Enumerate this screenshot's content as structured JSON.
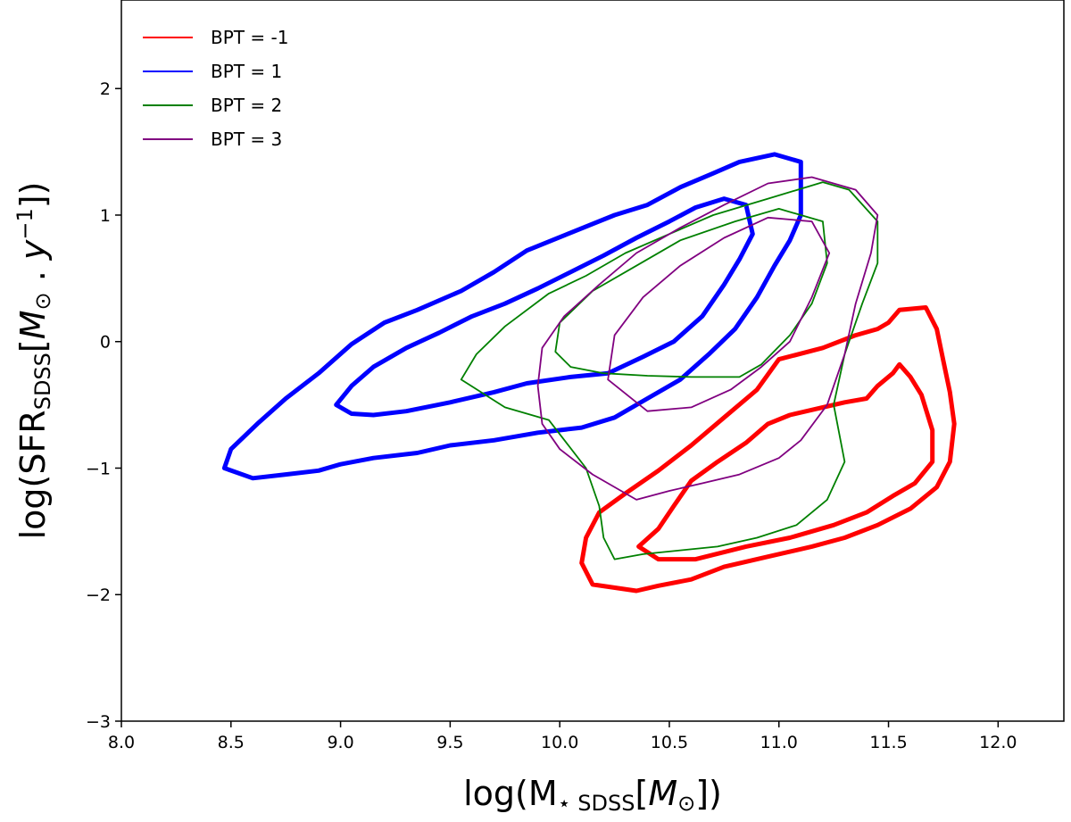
{
  "chart_data": {
    "type": "line",
    "xlabel": "log(M_{⋆ SDSS}[M_⊙])",
    "ylabel": "log(SFR_{SDSS}[M_⊙ . y^{-1}])",
    "xlim": [
      8.0,
      12.3
    ],
    "ylim": [
      -3,
      2.7
    ],
    "xticks": [
      "8.0",
      "8.5",
      "9.0",
      "9.5",
      "10.0",
      "10.5",
      "11.0",
      "11.5",
      "12.0"
    ],
    "yticks": [
      "−3",
      "−2",
      "−1",
      "0",
      "1",
      "2"
    ],
    "legend_position": "top-left",
    "grid": false,
    "series": [
      {
        "name": "BPT = -1",
        "color": "#ff0000",
        "contours": [
          [
            [
              10.1,
              -1.75
            ],
            [
              10.12,
              -1.55
            ],
            [
              10.18,
              -1.35
            ],
            [
              10.3,
              -1.2
            ],
            [
              10.45,
              -1.02
            ],
            [
              10.6,
              -0.82
            ],
            [
              10.75,
              -0.6
            ],
            [
              10.9,
              -0.38
            ],
            [
              11.0,
              -0.14
            ],
            [
              11.2,
              -0.05
            ],
            [
              11.35,
              0.05
            ],
            [
              11.45,
              0.1
            ],
            [
              11.5,
              0.15
            ],
            [
              11.55,
              0.25
            ],
            [
              11.67,
              0.27
            ],
            [
              11.72,
              0.1
            ],
            [
              11.75,
              -0.15
            ],
            [
              11.78,
              -0.4
            ],
            [
              11.8,
              -0.65
            ],
            [
              11.78,
              -0.95
            ],
            [
              11.72,
              -1.15
            ],
            [
              11.6,
              -1.32
            ],
            [
              11.45,
              -1.45
            ],
            [
              11.3,
              -1.55
            ],
            [
              11.15,
              -1.62
            ],
            [
              10.95,
              -1.7
            ],
            [
              10.75,
              -1.78
            ],
            [
              10.6,
              -1.88
            ],
            [
              10.45,
              -1.93
            ],
            [
              10.35,
              -1.97
            ],
            [
              10.15,
              -1.92
            ],
            [
              10.1,
              -1.75
            ]
          ],
          [
            [
              10.36,
              -1.62
            ],
            [
              10.45,
              -1.48
            ],
            [
              10.52,
              -1.3
            ],
            [
              10.6,
              -1.1
            ],
            [
              10.72,
              -0.95
            ],
            [
              10.85,
              -0.8
            ],
            [
              10.95,
              -0.65
            ],
            [
              11.05,
              -0.58
            ],
            [
              11.2,
              -0.52
            ],
            [
              11.3,
              -0.48
            ],
            [
              11.4,
              -0.45
            ],
            [
              11.45,
              -0.35
            ],
            [
              11.52,
              -0.25
            ],
            [
              11.55,
              -0.18
            ],
            [
              11.6,
              -0.28
            ],
            [
              11.65,
              -0.42
            ],
            [
              11.7,
              -0.7
            ],
            [
              11.7,
              -0.95
            ],
            [
              11.62,
              -1.12
            ],
            [
              11.52,
              -1.22
            ],
            [
              11.4,
              -1.35
            ],
            [
              11.25,
              -1.45
            ],
            [
              11.05,
              -1.55
            ],
            [
              10.85,
              -1.62
            ],
            [
              10.62,
              -1.72
            ],
            [
              10.45,
              -1.72
            ],
            [
              10.36,
              -1.62
            ]
          ]
        ]
      },
      {
        "name": "BPT = 1",
        "color": "#0000ff",
        "contours": [
          [
            [
              8.47,
              -1.0
            ],
            [
              8.5,
              -0.85
            ],
            [
              8.62,
              -0.65
            ],
            [
              8.75,
              -0.45
            ],
            [
              8.9,
              -0.25
            ],
            [
              9.05,
              -0.02
            ],
            [
              9.2,
              0.15
            ],
            [
              9.35,
              0.25
            ],
            [
              9.55,
              0.4
            ],
            [
              9.7,
              0.55
            ],
            [
              9.85,
              0.72
            ],
            [
              10.05,
              0.86
            ],
            [
              10.25,
              1.0
            ],
            [
              10.4,
              1.08
            ],
            [
              10.55,
              1.22
            ],
            [
              10.7,
              1.33
            ],
            [
              10.82,
              1.42
            ],
            [
              10.98,
              1.48
            ],
            [
              11.1,
              1.42
            ],
            [
              11.1,
              1.0
            ],
            [
              11.05,
              0.8
            ],
            [
              10.98,
              0.6
            ],
            [
              10.9,
              0.35
            ],
            [
              10.8,
              0.1
            ],
            [
              10.68,
              -0.1
            ],
            [
              10.55,
              -0.3
            ],
            [
              10.4,
              -0.45
            ],
            [
              10.25,
              -0.6
            ],
            [
              10.1,
              -0.68
            ],
            [
              9.9,
              -0.72
            ],
            [
              9.7,
              -0.78
            ],
            [
              9.5,
              -0.82
            ],
            [
              9.35,
              -0.88
            ],
            [
              9.15,
              -0.92
            ],
            [
              9.0,
              -0.97
            ],
            [
              8.9,
              -1.02
            ],
            [
              8.75,
              -1.05
            ],
            [
              8.6,
              -1.08
            ],
            [
              8.47,
              -1.0
            ]
          ],
          [
            [
              8.98,
              -0.5
            ],
            [
              9.05,
              -0.35
            ],
            [
              9.15,
              -0.2
            ],
            [
              9.3,
              -0.05
            ],
            [
              9.45,
              0.07
            ],
            [
              9.6,
              0.2
            ],
            [
              9.75,
              0.3
            ],
            [
              9.9,
              0.42
            ],
            [
              10.05,
              0.55
            ],
            [
              10.2,
              0.68
            ],
            [
              10.35,
              0.82
            ],
            [
              10.5,
              0.95
            ],
            [
              10.62,
              1.06
            ],
            [
              10.75,
              1.13
            ],
            [
              10.85,
              1.08
            ],
            [
              10.88,
              0.85
            ],
            [
              10.82,
              0.65
            ],
            [
              10.75,
              0.45
            ],
            [
              10.65,
              0.2
            ],
            [
              10.52,
              0.0
            ],
            [
              10.38,
              -0.12
            ],
            [
              10.22,
              -0.25
            ],
            [
              10.05,
              -0.28
            ],
            [
              9.85,
              -0.33
            ],
            [
              9.7,
              -0.4
            ],
            [
              9.5,
              -0.48
            ],
            [
              9.3,
              -0.55
            ],
            [
              9.15,
              -0.58
            ],
            [
              9.05,
              -0.57
            ],
            [
              8.98,
              -0.5
            ]
          ]
        ]
      },
      {
        "name": "BPT = 2",
        "color": "#008000",
        "contours": [
          [
            [
              9.55,
              -0.3
            ],
            [
              9.62,
              -0.1
            ],
            [
              9.75,
              0.12
            ],
            [
              9.95,
              0.38
            ],
            [
              10.12,
              0.52
            ],
            [
              10.3,
              0.7
            ],
            [
              10.5,
              0.85
            ],
            [
              10.7,
              1.0
            ],
            [
              10.95,
              1.13
            ],
            [
              11.2,
              1.26
            ],
            [
              11.32,
              1.2
            ],
            [
              11.45,
              0.95
            ],
            [
              11.45,
              0.62
            ],
            [
              11.38,
              0.3
            ],
            [
              11.3,
              -0.1
            ],
            [
              11.25,
              -0.5
            ],
            [
              11.3,
              -0.95
            ],
            [
              11.22,
              -1.25
            ],
            [
              11.08,
              -1.45
            ],
            [
              10.9,
              -1.55
            ],
            [
              10.72,
              -1.62
            ],
            [
              10.55,
              -1.65
            ],
            [
              10.38,
              -1.68
            ],
            [
              10.25,
              -1.72
            ],
            [
              10.2,
              -1.55
            ],
            [
              10.18,
              -1.3
            ],
            [
              10.12,
              -1.0
            ],
            [
              9.95,
              -0.62
            ],
            [
              9.75,
              -0.52
            ],
            [
              9.55,
              -0.3
            ]
          ],
          [
            [
              9.98,
              -0.08
            ],
            [
              10.0,
              0.15
            ],
            [
              10.15,
              0.4
            ],
            [
              10.35,
              0.6
            ],
            [
              10.55,
              0.8
            ],
            [
              10.8,
              0.95
            ],
            [
              11.0,
              1.05
            ],
            [
              11.2,
              0.95
            ],
            [
              11.22,
              0.62
            ],
            [
              11.15,
              0.3
            ],
            [
              11.05,
              0.05
            ],
            [
              10.92,
              -0.18
            ],
            [
              10.82,
              -0.28
            ],
            [
              10.6,
              -0.28
            ],
            [
              10.4,
              -0.27
            ],
            [
              10.2,
              -0.25
            ],
            [
              10.05,
              -0.2
            ],
            [
              9.98,
              -0.08
            ]
          ]
        ]
      },
      {
        "name": "BPT = 3",
        "color": "#800080",
        "contours": [
          [
            [
              9.9,
              -0.35
            ],
            [
              9.92,
              -0.05
            ],
            [
              10.02,
              0.2
            ],
            [
              10.18,
              0.45
            ],
            [
              10.35,
              0.7
            ],
            [
              10.55,
              0.9
            ],
            [
              10.75,
              1.08
            ],
            [
              10.95,
              1.25
            ],
            [
              11.15,
              1.3
            ],
            [
              11.35,
              1.2
            ],
            [
              11.45,
              1.0
            ],
            [
              11.42,
              0.7
            ],
            [
              11.35,
              0.3
            ],
            [
              11.3,
              -0.1
            ],
            [
              11.22,
              -0.5
            ],
            [
              11.1,
              -0.78
            ],
            [
              11.0,
              -0.92
            ],
            [
              10.82,
              -1.05
            ],
            [
              10.65,
              -1.12
            ],
            [
              10.5,
              -1.18
            ],
            [
              10.35,
              -1.25
            ],
            [
              10.15,
              -1.05
            ],
            [
              10.0,
              -0.85
            ],
            [
              9.92,
              -0.65
            ],
            [
              9.9,
              -0.35
            ]
          ],
          [
            [
              10.22,
              -0.3
            ],
            [
              10.25,
              0.05
            ],
            [
              10.38,
              0.35
            ],
            [
              10.55,
              0.6
            ],
            [
              10.75,
              0.82
            ],
            [
              10.95,
              0.98
            ],
            [
              11.15,
              0.95
            ],
            [
              11.23,
              0.7
            ],
            [
              11.15,
              0.35
            ],
            [
              11.05,
              0.0
            ],
            [
              10.92,
              -0.2
            ],
            [
              10.78,
              -0.38
            ],
            [
              10.6,
              -0.52
            ],
            [
              10.4,
              -0.55
            ],
            [
              10.22,
              -0.3
            ]
          ]
        ]
      }
    ]
  }
}
